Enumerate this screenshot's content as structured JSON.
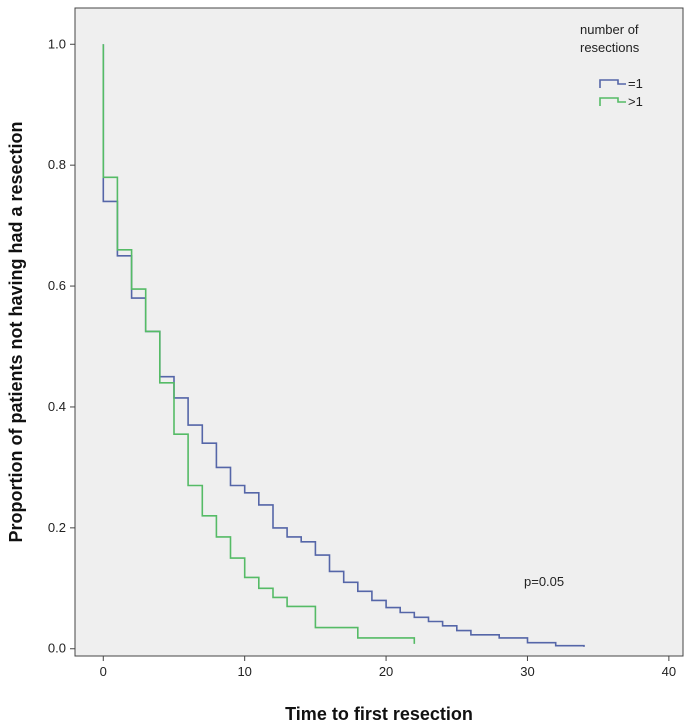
{
  "chart_data": {
    "type": "line",
    "step": true,
    "title": "",
    "xlabel": "Time to first resection",
    "ylabel": "Proportion of patients not having had a resection",
    "xlim": [
      -2,
      41
    ],
    "ylim": [
      -0.012,
      1.06
    ],
    "xticks": [
      0,
      10,
      20,
      30,
      40
    ],
    "yticks": [
      0.0,
      0.2,
      0.4,
      0.6,
      0.8,
      1.0
    ],
    "ytick_labels": [
      "0.0",
      "0.2",
      "0.4",
      "0.6",
      "0.8",
      "1.0"
    ],
    "grid": false,
    "legend": {
      "title_lines": [
        "number of",
        "resections"
      ],
      "position": "top-right"
    },
    "annotation": "p=0.05",
    "series": [
      {
        "name": "=1",
        "color": "#5566a8",
        "x": [
          0,
          0,
          1,
          2,
          3,
          4,
          5,
          6,
          7,
          8,
          9,
          10,
          11,
          12,
          13,
          14,
          15,
          16,
          17,
          18,
          19,
          20,
          21,
          22,
          23,
          24,
          25,
          26,
          28,
          30,
          32,
          34
        ],
        "y": [
          1.0,
          0.74,
          0.65,
          0.58,
          0.525,
          0.45,
          0.415,
          0.37,
          0.34,
          0.3,
          0.27,
          0.258,
          0.238,
          0.2,
          0.185,
          0.177,
          0.155,
          0.128,
          0.11,
          0.095,
          0.08,
          0.068,
          0.06,
          0.052,
          0.045,
          0.038,
          0.03,
          0.023,
          0.018,
          0.01,
          0.005,
          0.003
        ]
      },
      {
        "name": ">1",
        "color": "#55bb66",
        "x": [
          0,
          0,
          1,
          2,
          3,
          4,
          5,
          6,
          7,
          8,
          9,
          10,
          11,
          12,
          13,
          15,
          18,
          22
        ],
        "y": [
          1.0,
          0.78,
          0.66,
          0.595,
          0.525,
          0.44,
          0.355,
          0.27,
          0.22,
          0.185,
          0.15,
          0.118,
          0.1,
          0.085,
          0.07,
          0.035,
          0.018,
          0.008
        ]
      }
    ]
  }
}
